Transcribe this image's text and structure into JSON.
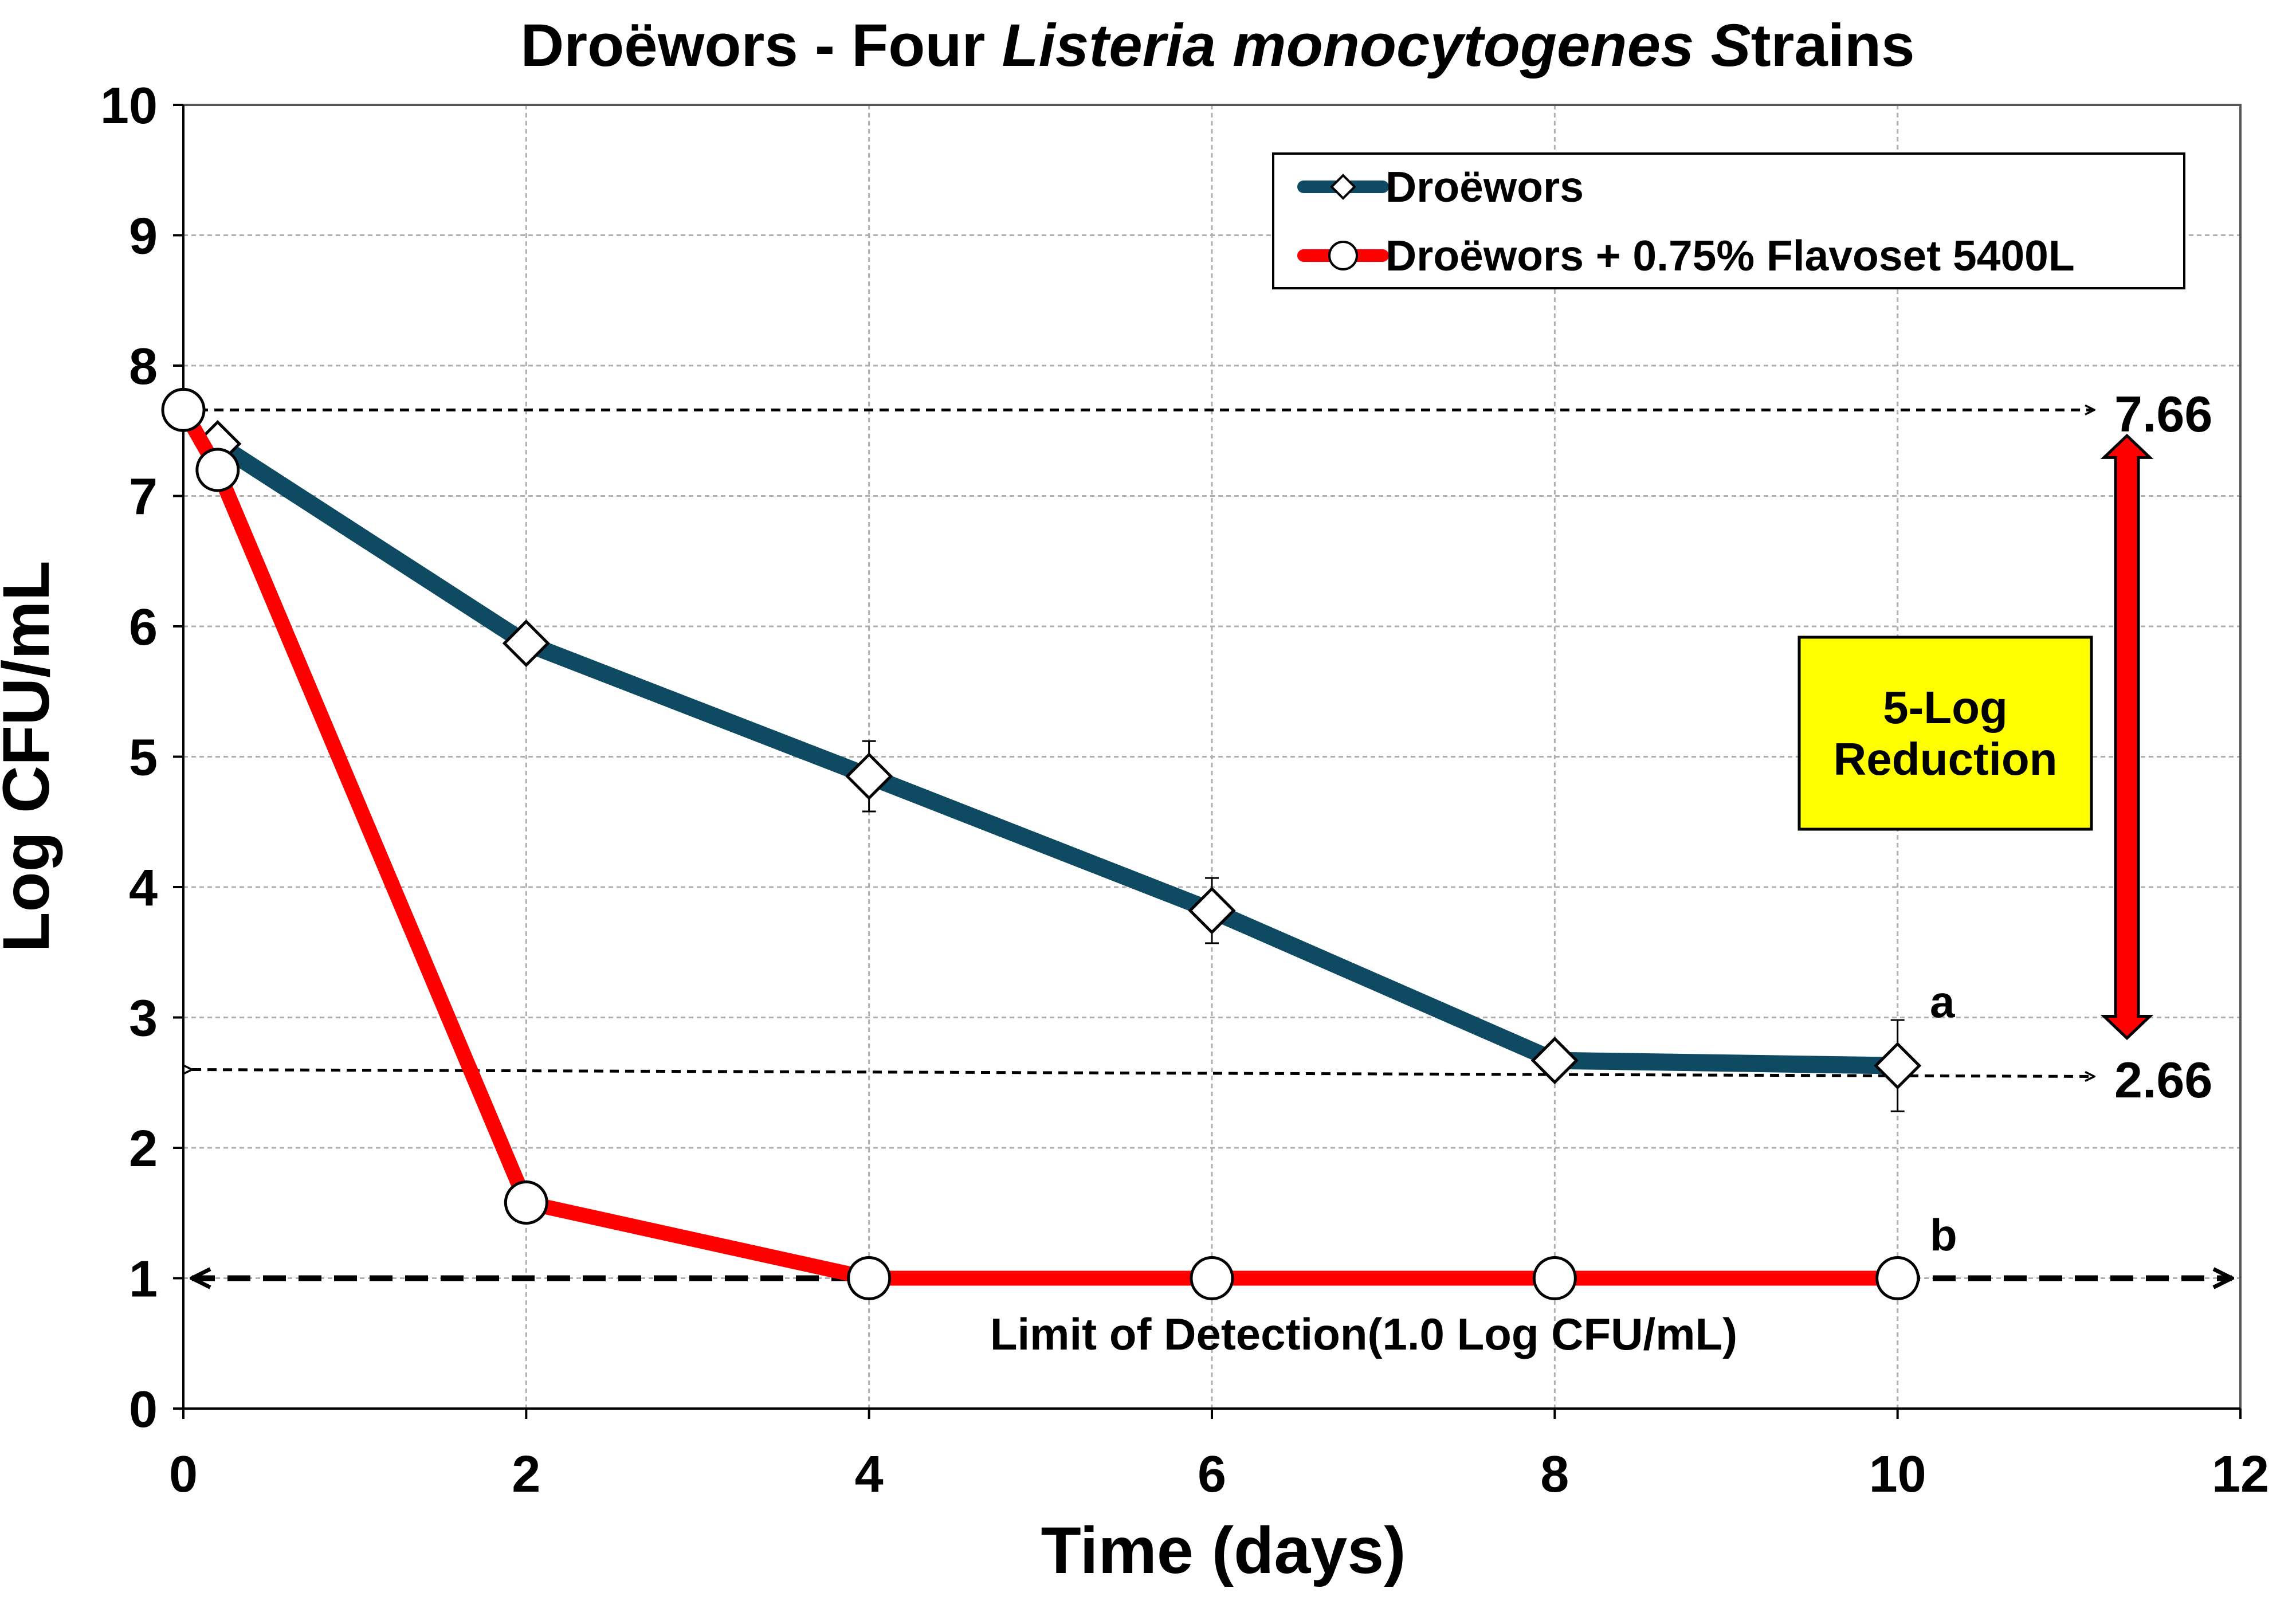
{
  "chart_data": {
    "type": "line",
    "title": "Droëwors - Four ",
    "title_italic": "Listeria monocytogenes S",
    "title_end": "trains",
    "xlabel": "Time (days)",
    "ylabel": "Log CFU/mL",
    "xlim": [
      0,
      12
    ],
    "ylim": [
      0,
      10
    ],
    "x_ticks": [
      "0",
      "2",
      "4",
      "6",
      "8",
      "10",
      "12"
    ],
    "y_ticks": [
      "0",
      "1",
      "2",
      "3",
      "4",
      "5",
      "6",
      "7",
      "8",
      "9",
      "10"
    ],
    "grid": true,
    "legend_position": "top-right",
    "series": [
      {
        "name": "Droëwors",
        "color": "#0f4a63",
        "marker": "diamond",
        "x": [
          0.2,
          2,
          4,
          6,
          8,
          10
        ],
        "y": [
          7.4,
          5.87,
          4.85,
          3.82,
          2.67,
          2.63
        ],
        "error": [
          0.08,
          0.1,
          0.27,
          0.25,
          0.08,
          0.35
        ]
      },
      {
        "name": "Droëwors + 0.75% Flavoset 5400L",
        "color": "#ff0000",
        "marker": "circle",
        "x": [
          0,
          0.2,
          2,
          4,
          6,
          8,
          10
        ],
        "y": [
          7.66,
          7.2,
          1.58,
          1.0,
          1.0,
          1.0,
          1.0
        ]
      }
    ],
    "annotations": {
      "upper_value": "7.66",
      "lower_value": "2.66",
      "upper_y": 7.66,
      "lower_y": 2.6,
      "reduction_label_line1": "5-Log",
      "reduction_label_line2": "Reduction",
      "reduction_box_color": "#ffff00",
      "arrow_color": "#ff0000",
      "letter_a": "a",
      "letter_b": "b",
      "lod_label": "Limit of Detection(1.0 Log CFU/mL)",
      "lod_y": 1.0
    }
  }
}
